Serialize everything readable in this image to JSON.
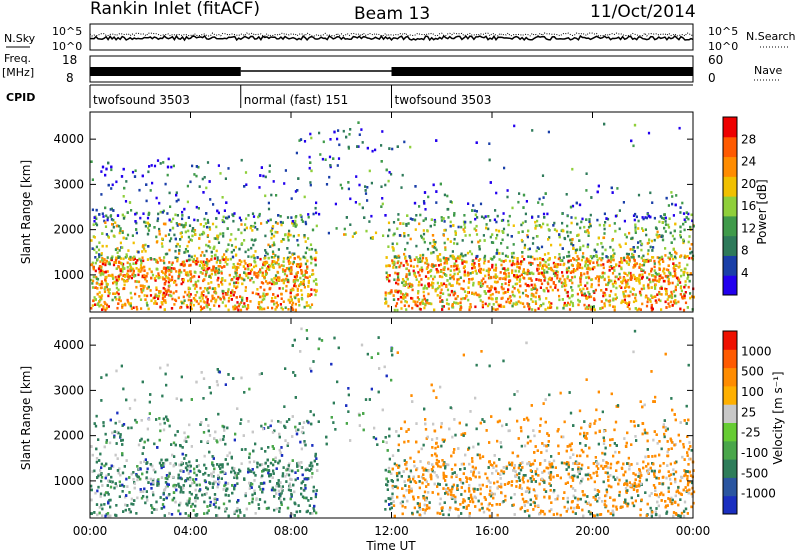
{
  "header": {
    "title": "Rankin Inlet (fitACF)",
    "beam": "Beam 13",
    "date": "11/Oct/2014"
  },
  "info_panels": {
    "nsky_label": "N.Sky",
    "nsearch_label": "N.Search",
    "noise_ticks": [
      "10^5",
      "10^0"
    ],
    "freq_label": "Freq.",
    "freq_unit": "[MHz]",
    "freq_ticks": [
      "18",
      "8"
    ],
    "nave_label": "Nave",
    "nave_ticks": [
      "60",
      "0"
    ],
    "cpid_label": "CPID",
    "cpid_segments": [
      {
        "label": "twofsound 3503",
        "start": 0,
        "end": 6
      },
      {
        "label": "normal (fast) 151",
        "start": 6,
        "end": 12
      },
      {
        "label": "twofsound 3503",
        "start": 12,
        "end": 24
      }
    ]
  },
  "chart_data": [
    {
      "type": "heatmap",
      "name": "power",
      "ylabel": "Slant Range [km]",
      "ylim": [
        180,
        4600
      ],
      "yticks": [
        1000,
        2000,
        3000,
        4000
      ],
      "xlim": [
        0,
        24
      ],
      "colorbar": {
        "label": "Power [dB]",
        "tick_labels": [
          "28",
          "24",
          "20",
          "16",
          "12",
          "8",
          "4"
        ],
        "colors": [
          "#2200ee",
          "#1a3fa8",
          "#2e7a5a",
          "#3f9a4a",
          "#8fcf3a",
          "#f0c000",
          "#ff8c00",
          "#ff5a00",
          "#ee0000"
        ]
      }
    },
    {
      "type": "heatmap",
      "name": "velocity",
      "ylabel": "Slant Range [km]",
      "ylim": [
        180,
        4600
      ],
      "yticks": [
        1000,
        2000,
        3000,
        4000
      ],
      "xlim": [
        0,
        24
      ],
      "xlabel": "Time UT",
      "xticks": [
        "00:00",
        "04:00",
        "08:00",
        "12:00",
        "16:00",
        "20:00",
        "00:00"
      ],
      "colorbar": {
        "label": "Velocity [m s⁻¹]",
        "tick_labels": [
          "1000",
          "500",
          "100",
          "25",
          "-25",
          "-100",
          "-500",
          "-1000"
        ],
        "colors": [
          "#1a2fc0",
          "#2a55a0",
          "#2e7d5a",
          "#49a64a",
          "#66cc33",
          "#c8c8c8",
          "#ffb000",
          "#ff8c00",
          "#ff5a00",
          "#ee1000"
        ]
      }
    }
  ]
}
